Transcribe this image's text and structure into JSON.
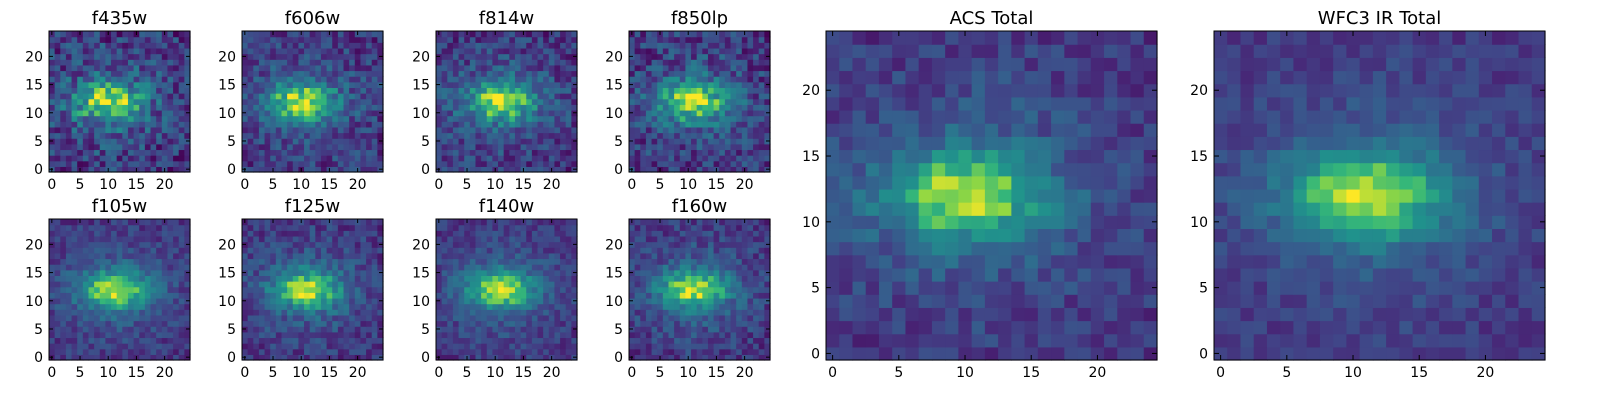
{
  "chart_data": [
    {
      "type": "heatmap",
      "title": "f435w",
      "xticks": [
        "0",
        "5",
        "10",
        "15",
        "20"
      ],
      "yticks": [
        "0",
        "5",
        "10",
        "15",
        "20"
      ],
      "xlim": [
        0,
        25
      ],
      "ylim": [
        0,
        25
      ],
      "grid": false,
      "colormap": "viridis",
      "peak_xy": [
        10,
        12
      ],
      "noise": 0.55,
      "seed": 11
    },
    {
      "type": "heatmap",
      "title": "f606w",
      "xticks": [
        "0",
        "5",
        "10",
        "15",
        "20"
      ],
      "yticks": [
        "0",
        "5",
        "10",
        "15",
        "20"
      ],
      "xlim": [
        0,
        25
      ],
      "ylim": [
        0,
        25
      ],
      "grid": false,
      "colormap": "viridis",
      "peak_xy": [
        10,
        12
      ],
      "noise": 0.45,
      "seed": 23
    },
    {
      "type": "heatmap",
      "title": "f814w",
      "xticks": [
        "0",
        "5",
        "10",
        "15",
        "20"
      ],
      "yticks": [
        "0",
        "5",
        "10",
        "15",
        "20"
      ],
      "xlim": [
        0,
        25
      ],
      "ylim": [
        0,
        25
      ],
      "grid": false,
      "colormap": "viridis",
      "peak_xy": [
        11,
        12
      ],
      "noise": 0.45,
      "seed": 37
    },
    {
      "type": "heatmap",
      "title": "f850lp",
      "xticks": [
        "0",
        "5",
        "10",
        "15",
        "20"
      ],
      "yticks": [
        "0",
        "5",
        "10",
        "15",
        "20"
      ],
      "xlim": [
        0,
        25
      ],
      "ylim": [
        0,
        25
      ],
      "grid": false,
      "colormap": "viridis",
      "peak_xy": [
        11,
        12
      ],
      "noise": 0.5,
      "seed": 41
    },
    {
      "type": "heatmap",
      "title": "f105w",
      "xticks": [
        "0",
        "5",
        "10",
        "15",
        "20"
      ],
      "yticks": [
        "0",
        "5",
        "10",
        "15",
        "20"
      ],
      "xlim": [
        0,
        25
      ],
      "ylim": [
        0,
        25
      ],
      "grid": false,
      "colormap": "viridis",
      "peak_xy": [
        11,
        12
      ],
      "noise": 0.3,
      "seed": 53
    },
    {
      "type": "heatmap",
      "title": "f125w",
      "xticks": [
        "0",
        "5",
        "10",
        "15",
        "20"
      ],
      "yticks": [
        "0",
        "5",
        "10",
        "15",
        "20"
      ],
      "xlim": [
        0,
        25
      ],
      "ylim": [
        0,
        25
      ],
      "grid": false,
      "colormap": "viridis",
      "peak_xy": [
        11,
        12
      ],
      "noise": 0.35,
      "seed": 67
    },
    {
      "type": "heatmap",
      "title": "f140w",
      "xticks": [
        "0",
        "5",
        "10",
        "15",
        "20"
      ],
      "yticks": [
        "0",
        "5",
        "10",
        "15",
        "20"
      ],
      "xlim": [
        0,
        25
      ],
      "ylim": [
        0,
        25
      ],
      "grid": false,
      "colormap": "viridis",
      "peak_xy": [
        11,
        12
      ],
      "noise": 0.3,
      "seed": 71
    },
    {
      "type": "heatmap",
      "title": "f160w",
      "xticks": [
        "0",
        "5",
        "10",
        "15",
        "20"
      ],
      "yticks": [
        "0",
        "5",
        "10",
        "15",
        "20"
      ],
      "xlim": [
        0,
        25
      ],
      "ylim": [
        0,
        25
      ],
      "grid": false,
      "colormap": "viridis",
      "peak_xy": [
        11,
        12
      ],
      "noise": 0.35,
      "seed": 83
    },
    {
      "type": "heatmap",
      "title": "ACS Total",
      "xticks": [
        "0",
        "5",
        "10",
        "15",
        "20"
      ],
      "yticks": [
        "0",
        "5",
        "10",
        "15",
        "20"
      ],
      "xlim": [
        0,
        25
      ],
      "ylim": [
        0,
        25
      ],
      "grid": false,
      "colormap": "viridis",
      "peak_xy": [
        10,
        12
      ],
      "noise": 0.3,
      "seed": 97
    },
    {
      "type": "heatmap",
      "title": "WFC3 IR Total",
      "xticks": [
        "0",
        "5",
        "10",
        "15",
        "20"
      ],
      "yticks": [
        "0",
        "5",
        "10",
        "15",
        "20"
      ],
      "xlim": [
        0,
        25
      ],
      "ylim": [
        0,
        25
      ],
      "grid": false,
      "colormap": "viridis",
      "peak_xy": [
        11,
        12
      ],
      "noise": 0.22,
      "seed": 103
    }
  ]
}
